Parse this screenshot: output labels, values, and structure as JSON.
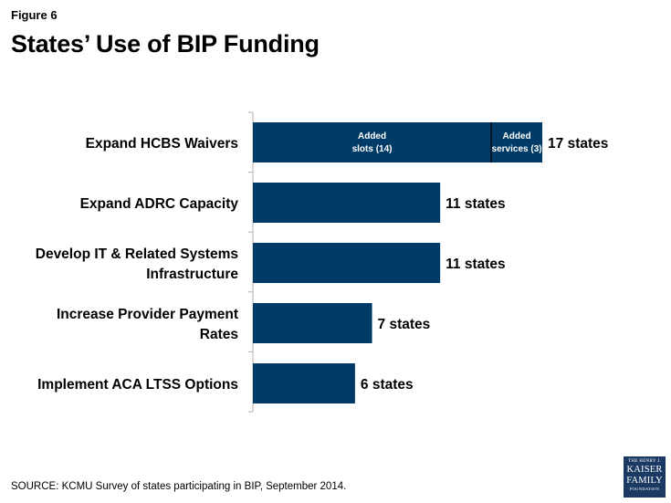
{
  "figure_label": "Figure 6",
  "title": "States’ Use of BIP Funding",
  "source": "SOURCE: KCMU Survey of states participating in BIP, September 2014.",
  "logo": {
    "line1": "THE HENRY J.",
    "line2": "KAISER",
    "line3": "FAMILY",
    "line4": "FOUNDATION"
  },
  "colors": {
    "bar": "#003a66",
    "axis": "#b0b0b0",
    "divider": "#000000"
  },
  "chart_data": {
    "type": "bar",
    "orientation": "horizontal",
    "xlim": [
      0,
      20
    ],
    "grid": false,
    "categories": [
      [
        "Expand HCBS Waivers"
      ],
      [
        "Expand ADRC Capacity"
      ],
      [
        "Develop IT & Related Systems",
        "Infrastructure"
      ],
      [
        "Increase Provider Payment",
        "Rates"
      ],
      [
        "Implement ACA LTSS Options"
      ]
    ],
    "values": [
      17,
      11,
      11,
      7,
      6
    ],
    "data_labels": [
      "17 states",
      "11 states",
      "11 states",
      "7 states",
      "6 states"
    ],
    "segments": [
      {
        "category_index": 0,
        "parts": [
          {
            "value": 14,
            "label": [
              "Added",
              "slots (14)"
            ]
          },
          {
            "value": 3,
            "label": [
              "Added",
              "services (3)"
            ]
          }
        ]
      }
    ]
  }
}
